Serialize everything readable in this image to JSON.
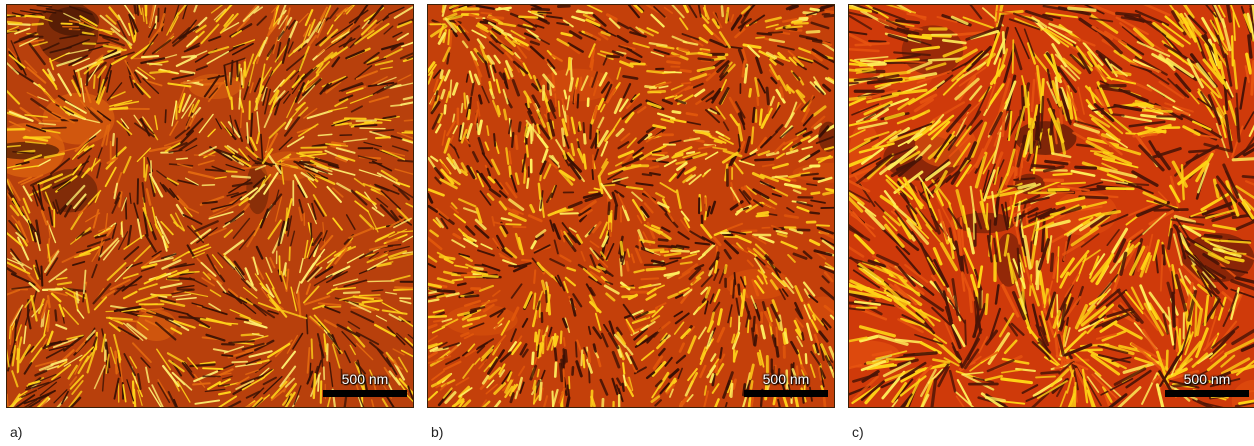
{
  "panels": [
    {
      "id": "a",
      "caption": "a)",
      "scale_label": "500 nm",
      "colors": {
        "base": "#b8400c",
        "dark": "#3a1204",
        "mid": "#e46a10",
        "bright": "#ffd21a",
        "highlight": "#fff070"
      }
    },
    {
      "id": "b",
      "caption": "b)",
      "scale_label": "500 nm",
      "colors": {
        "base": "#c4400a",
        "dark": "#3a1004",
        "mid": "#e2580c",
        "bright": "#ffd01a",
        "highlight": "#fff060"
      }
    },
    {
      "id": "c",
      "caption": "c)",
      "scale_label": "500 nm",
      "colors": {
        "base": "#cf3a0a",
        "dark": "#4a1406",
        "mid": "#e85410",
        "bright": "#ffd416",
        "highlight": "#ffef5a"
      }
    }
  ]
}
